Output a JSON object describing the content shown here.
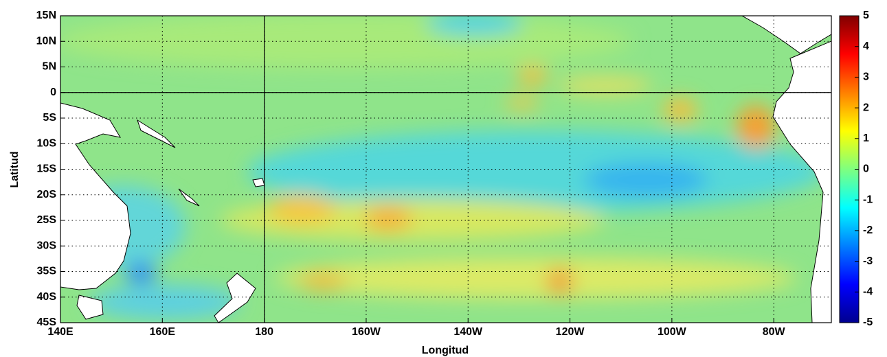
{
  "chart_data": {
    "type": "heatmap-map",
    "xlabel": "Longitud",
    "ylabel": "Latitud",
    "xlim": [
      140,
      291.3
    ],
    "ylim": [
      -45,
      15
    ],
    "xticks": [
      {
        "value": 140,
        "label": "140E"
      },
      {
        "value": 160,
        "label": "160E"
      },
      {
        "value": 180,
        "label": "180"
      },
      {
        "value": 200,
        "label": "160W"
      },
      {
        "value": 220,
        "label": "140W"
      },
      {
        "value": 240,
        "label": "120W"
      },
      {
        "value": 260,
        "label": "100W"
      },
      {
        "value": 280,
        "label": "80W"
      }
    ],
    "yticks": [
      {
        "value": 15,
        "label": "15N"
      },
      {
        "value": 10,
        "label": "10N"
      },
      {
        "value": 5,
        "label": "5N"
      },
      0,
      {
        "value": -5,
        "label": "5S"
      },
      {
        "value": -10,
        "label": "10S"
      },
      {
        "value": -15,
        "label": "15S"
      },
      {
        "value": -20,
        "label": "20S"
      },
      {
        "value": -25,
        "label": "25S"
      },
      {
        "value": -30,
        "label": "30S"
      },
      {
        "value": -35,
        "label": "35S"
      },
      {
        "value": -40,
        "label": "40S"
      },
      {
        "value": -45,
        "label": "45S"
      }
    ],
    "grid": true,
    "reference_lines": [
      {
        "axis": "x",
        "value": 180
      },
      {
        "axis": "y",
        "value": 0
      }
    ],
    "colorbar": {
      "colormap": "jet",
      "lim": [
        -5,
        5
      ],
      "ticks": [
        5,
        4,
        3,
        2,
        1,
        0,
        -1,
        -2,
        -3,
        -4,
        -5
      ]
    }
  }
}
